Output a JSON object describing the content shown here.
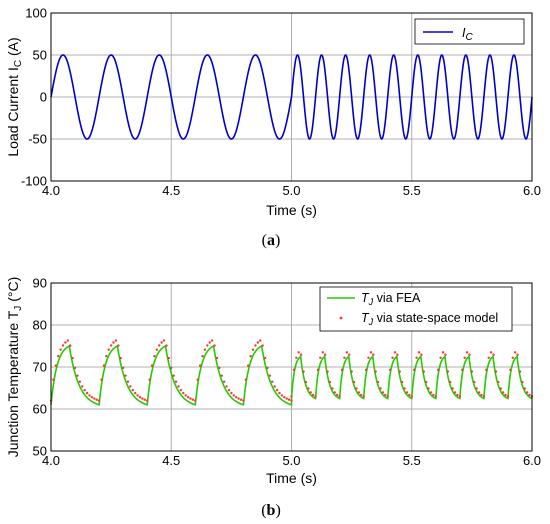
{
  "figure": {
    "caption_a_open": "(",
    "caption_a_letter": "a",
    "caption_a_close": ")",
    "caption_b_open": "(",
    "caption_b_letter": "b",
    "caption_b_close": ")"
  },
  "chart_data": [
    {
      "type": "line",
      "title": "",
      "xlabel": "Time (s)",
      "ylabel_main": "Load Current I",
      "ylabel_sub": "C",
      "ylabel_unit": " (A)",
      "xlim": [
        4.0,
        6.0
      ],
      "ylim": [
        -100,
        100
      ],
      "x_ticks": [
        "4.0",
        "4.5",
        "5.0",
        "5.5",
        "6.0"
      ],
      "y_ticks": [
        "-100",
        "-50",
        "0",
        "50",
        "100"
      ],
      "grid": true,
      "legend": "top-right",
      "series": [
        {
          "name_main": "I",
          "name_sub": "C",
          "color": "#0000cc",
          "shape": "sine",
          "amplitude": 50,
          "segments": [
            {
              "from": 4.0,
              "to": 5.0,
              "frequency_hz": 5
            },
            {
              "from": 5.0,
              "to": 6.0,
              "frequency_hz": 10
            }
          ]
        }
      ]
    },
    {
      "type": "line",
      "title": "",
      "xlabel": "Time (s)",
      "ylabel_main": "Junction Temperature T",
      "ylabel_sub": "J",
      "ylabel_unit": " (°C)",
      "xlim": [
        4.0,
        6.0
      ],
      "ylim": [
        50,
        90
      ],
      "x_ticks": [
        "4.0",
        "4.5",
        "5.0",
        "5.5",
        "6.0"
      ],
      "y_ticks": [
        "50",
        "60",
        "70",
        "80",
        "90"
      ],
      "grid": true,
      "legend": "top-right",
      "series": [
        {
          "name_main": "T",
          "name_sub": "J",
          "name_rest": " via FEA",
          "color": "#22cc00",
          "style": "line",
          "segments": [
            {
              "from": 4.0,
              "to": 5.0,
              "period_s": 0.2,
              "min_c": 61.0,
              "max_c": 75.0
            },
            {
              "from": 5.0,
              "to": 6.0,
              "period_s": 0.1,
              "min_c": 62.5,
              "max_c": 72.5
            }
          ]
        },
        {
          "name_main": "T",
          "name_sub": "J",
          "name_rest": " via state-space model",
          "color": "#ff3333",
          "style": "dots",
          "segments": [
            {
              "from": 4.0,
              "to": 5.0,
              "period_s": 0.2,
              "min_c": 62.0,
              "max_c": 76.5
            },
            {
              "from": 5.0,
              "to": 6.0,
              "period_s": 0.1,
              "min_c": 63.0,
              "max_c": 74.0
            }
          ]
        }
      ]
    }
  ]
}
